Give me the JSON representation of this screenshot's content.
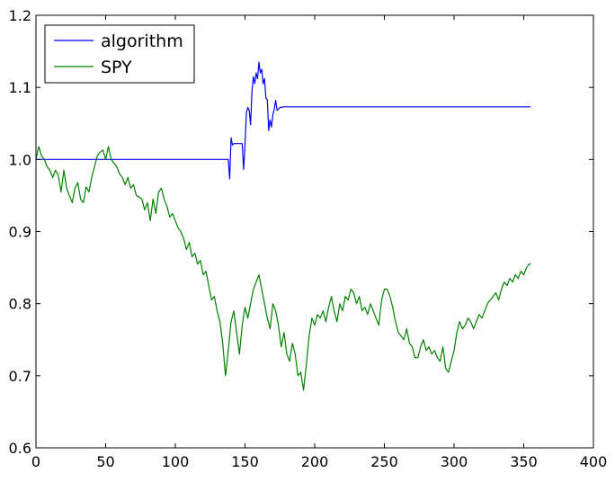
{
  "chart_data": {
    "type": "line",
    "title": "",
    "xlabel": "",
    "ylabel": "",
    "xlim": [
      0,
      400
    ],
    "ylim": [
      0.6,
      1.2
    ],
    "x_ticks": [
      0,
      50,
      100,
      150,
      200,
      250,
      300,
      350,
      400
    ],
    "x_tick_labels": [
      "0",
      "50",
      "100",
      "150",
      "200",
      "250",
      "300",
      "350",
      "400"
    ],
    "y_ticks": [
      0.6,
      0.7,
      0.8,
      0.9,
      1.0,
      1.1,
      1.2
    ],
    "y_tick_labels": [
      "0.6",
      "0.7",
      "0.8",
      "0.9",
      "1.0",
      "1.1",
      "1.2"
    ],
    "grid": false,
    "legend_position": "top-left",
    "series": [
      {
        "name": "algorithm",
        "color": "#0000ff",
        "x": [
          0,
          20,
          40,
          60,
          80,
          100,
          120,
          135,
          138,
          139,
          140,
          141,
          142,
          145,
          148,
          149,
          150,
          151,
          152,
          153,
          154,
          155,
          156,
          157,
          158,
          159,
          160,
          161,
          162,
          163,
          164,
          165,
          166,
          167,
          168,
          169,
          170,
          171,
          172,
          173,
          175,
          178,
          180,
          200,
          250,
          300,
          355
        ],
        "values": [
          1.0,
          1.0,
          1.0,
          1.0,
          1.0,
          1.0,
          1.0,
          1.0,
          1.0,
          0.973,
          1.03,
          1.02,
          1.022,
          1.022,
          1.022,
          0.986,
          1.02,
          1.065,
          1.072,
          1.068,
          1.048,
          1.095,
          1.115,
          1.105,
          1.12,
          1.112,
          1.135,
          1.12,
          1.125,
          1.105,
          1.112,
          1.085,
          1.083,
          1.04,
          1.055,
          1.045,
          1.062,
          1.07,
          1.082,
          1.068,
          1.072,
          1.073,
          1.073,
          1.073,
          1.073,
          1.073,
          1.073
        ]
      },
      {
        "name": "SPY",
        "color": "#008000",
        "x": [
          0,
          2,
          4,
          6,
          8,
          10,
          12,
          14,
          16,
          18,
          20,
          22,
          24,
          26,
          28,
          30,
          32,
          34,
          36,
          38,
          40,
          42,
          44,
          46,
          48,
          50,
          52,
          54,
          56,
          58,
          60,
          62,
          64,
          66,
          68,
          70,
          72,
          74,
          76,
          78,
          80,
          82,
          84,
          86,
          88,
          90,
          92,
          94,
          96,
          98,
          100,
          102,
          104,
          106,
          108,
          110,
          112,
          114,
          116,
          118,
          120,
          122,
          124,
          126,
          128,
          130,
          132,
          134,
          136,
          138,
          140,
          142,
          144,
          146,
          148,
          150,
          152,
          154,
          156,
          158,
          160,
          162,
          164,
          166,
          168,
          170,
          172,
          174,
          176,
          178,
          180,
          182,
          184,
          186,
          188,
          190,
          192,
          194,
          196,
          198,
          200,
          202,
          204,
          206,
          208,
          210,
          212,
          214,
          216,
          218,
          220,
          222,
          224,
          226,
          228,
          230,
          232,
          234,
          236,
          238,
          240,
          242,
          244,
          246,
          248,
          250,
          252,
          254,
          256,
          258,
          260,
          262,
          264,
          266,
          268,
          270,
          272,
          274,
          276,
          278,
          280,
          282,
          284,
          286,
          288,
          290,
          292,
          294,
          296,
          298,
          300,
          302,
          304,
          306,
          308,
          310,
          312,
          314,
          316,
          318,
          320,
          322,
          324,
          326,
          328,
          330,
          332,
          334,
          336,
          338,
          340,
          342,
          344,
          346,
          348,
          350,
          352,
          354,
          355
        ],
        "values": [
          1.0,
          1.018,
          1.005,
          1.0,
          0.99,
          0.985,
          0.975,
          0.985,
          0.978,
          0.955,
          0.985,
          0.96,
          0.95,
          0.94,
          0.96,
          0.968,
          0.945,
          0.94,
          0.962,
          0.955,
          0.975,
          0.99,
          1.005,
          1.01,
          1.013,
          1.0,
          1.018,
          1.0,
          0.995,
          0.99,
          0.98,
          0.975,
          0.965,
          0.975,
          0.96,
          0.965,
          0.95,
          0.948,
          0.945,
          0.93,
          0.94,
          0.915,
          0.945,
          0.925,
          0.955,
          0.96,
          0.945,
          0.935,
          0.92,
          0.925,
          0.915,
          0.905,
          0.9,
          0.89,
          0.875,
          0.885,
          0.865,
          0.87,
          0.855,
          0.86,
          0.84,
          0.845,
          0.825,
          0.805,
          0.81,
          0.79,
          0.775,
          0.745,
          0.7,
          0.735,
          0.775,
          0.79,
          0.76,
          0.73,
          0.77,
          0.795,
          0.78,
          0.8,
          0.82,
          0.83,
          0.84,
          0.82,
          0.8,
          0.78,
          0.765,
          0.8,
          0.79,
          0.77,
          0.74,
          0.76,
          0.73,
          0.72,
          0.745,
          0.73,
          0.7,
          0.705,
          0.68,
          0.715,
          0.755,
          0.78,
          0.77,
          0.785,
          0.78,
          0.79,
          0.775,
          0.795,
          0.81,
          0.79,
          0.775,
          0.8,
          0.79,
          0.81,
          0.805,
          0.82,
          0.815,
          0.8,
          0.81,
          0.79,
          0.795,
          0.785,
          0.8,
          0.79,
          0.78,
          0.77,
          0.805,
          0.82,
          0.82,
          0.81,
          0.795,
          0.775,
          0.76,
          0.755,
          0.75,
          0.765,
          0.745,
          0.74,
          0.725,
          0.725,
          0.74,
          0.75,
          0.735,
          0.74,
          0.73,
          0.735,
          0.725,
          0.72,
          0.74,
          0.71,
          0.705,
          0.72,
          0.735,
          0.76,
          0.775,
          0.765,
          0.77,
          0.78,
          0.775,
          0.765,
          0.775,
          0.785,
          0.78,
          0.79,
          0.8,
          0.805,
          0.81,
          0.815,
          0.805,
          0.82,
          0.83,
          0.825,
          0.835,
          0.83,
          0.84,
          0.835,
          0.845,
          0.84,
          0.85,
          0.855,
          0.855
        ]
      }
    ]
  }
}
